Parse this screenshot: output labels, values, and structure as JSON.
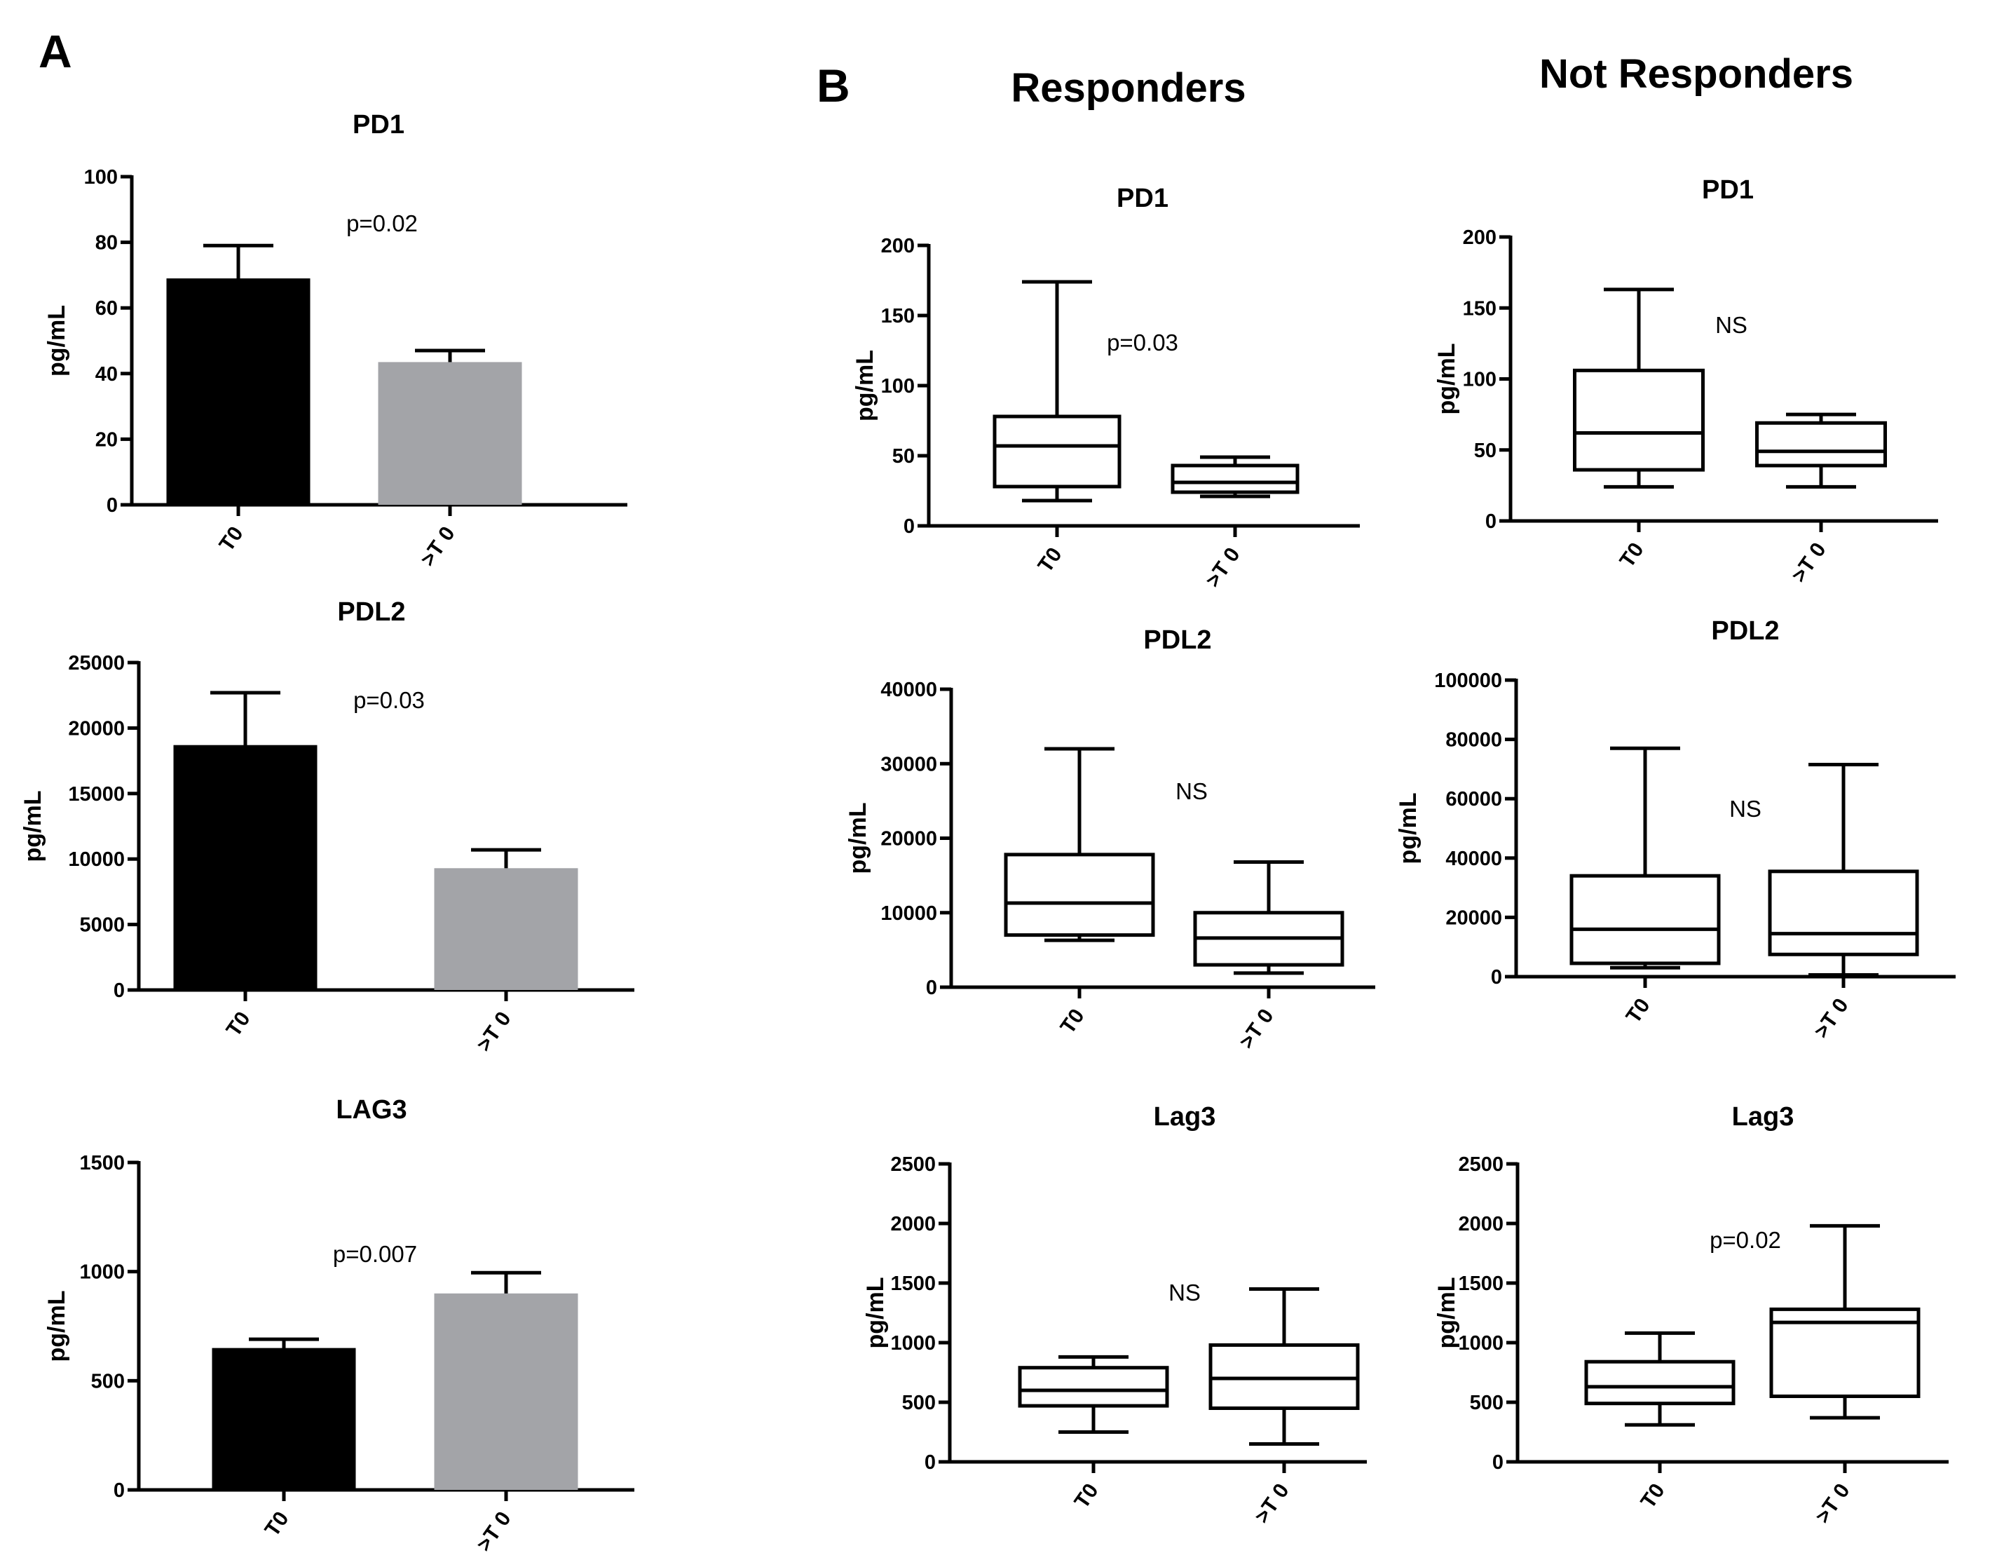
{
  "panels": {
    "a_label": "A",
    "b_label": "B",
    "responders_label": "Responders",
    "not_responders_label": "Not Responders"
  },
  "colors": {
    "bar_t0": "#000000",
    "bar_after": "#a3a4a8",
    "axis": "#000000"
  },
  "chart_data": [
    {
      "id": "a-pd1",
      "type": "bar",
      "title": "PD1",
      "ylabel": "pg/mL",
      "categories": [
        "T0",
        ">T 0"
      ],
      "values": [
        69,
        43.5
      ],
      "errors": [
        79,
        47
      ],
      "ylim": [
        0,
        100
      ],
      "yticks": [
        0,
        20,
        40,
        60,
        80,
        100
      ],
      "annotation": "p=0.02"
    },
    {
      "id": "a-pdl2",
      "type": "bar",
      "title": "PDL2",
      "ylabel": "pg/mL",
      "categories": [
        "T0",
        ">T 0"
      ],
      "values": [
        18700,
        9300
      ],
      "errors": [
        22700,
        10700
      ],
      "ylim": [
        0,
        25000
      ],
      "yticks": [
        0,
        5000,
        10000,
        15000,
        20000,
        25000
      ],
      "annotation": "p=0.03"
    },
    {
      "id": "a-lag3",
      "type": "bar",
      "title": "LAG3",
      "ylabel": "pg/mL",
      "categories": [
        "T0",
        ">T 0"
      ],
      "values": [
        650,
        900
      ],
      "errors": [
        690,
        995
      ],
      "ylim": [
        0,
        1500
      ],
      "yticks": [
        0,
        500,
        1000,
        1500
      ],
      "annotation": "p=0.007"
    },
    {
      "id": "r-pd1",
      "type": "box",
      "group": "Responders",
      "title": "PD1",
      "ylabel": "pg/mL",
      "categories": [
        "T0",
        ">T 0"
      ],
      "boxes": [
        {
          "min": 18,
          "q1": 28,
          "median": 57,
          "q3": 78,
          "max": 174
        },
        {
          "min": 21,
          "q1": 24,
          "median": 31,
          "q3": 43,
          "max": 49
        }
      ],
      "ylim": [
        0,
        200
      ],
      "yticks": [
        0,
        50,
        100,
        150,
        200
      ],
      "annotation": "p=0.03"
    },
    {
      "id": "n-pd1",
      "type": "box",
      "group": "Not Responders",
      "title": "PD1",
      "ylabel": "pg/mL",
      "categories": [
        "T0",
        ">T 0"
      ],
      "boxes": [
        {
          "min": 24,
          "q1": 36,
          "median": 62,
          "q3": 106,
          "max": 163
        },
        {
          "min": 24,
          "q1": 39,
          "median": 49,
          "q3": 69,
          "max": 75
        }
      ],
      "ylim": [
        0,
        200
      ],
      "yticks": [
        0,
        50,
        100,
        150,
        200
      ],
      "annotation": "NS"
    },
    {
      "id": "r-pdl2",
      "type": "box",
      "group": "Responders",
      "title": "PDL2",
      "ylabel": "pg/mL",
      "categories": [
        "T0",
        ">T 0"
      ],
      "boxes": [
        {
          "min": 6300,
          "q1": 7000,
          "median": 11300,
          "q3": 17800,
          "max": 32000
        },
        {
          "min": 1900,
          "q1": 3000,
          "median": 6600,
          "q3": 10000,
          "max": 16800
        }
      ],
      "ylim": [
        0,
        40000
      ],
      "yticks": [
        0,
        10000,
        20000,
        30000,
        40000
      ],
      "annotation": "NS"
    },
    {
      "id": "n-pdl2",
      "type": "box",
      "group": "Not Responders",
      "title": "PDL2",
      "ylabel": "pg/mL",
      "categories": [
        "T0",
        ">T 0"
      ],
      "boxes": [
        {
          "min": 3000,
          "q1": 4500,
          "median": 16000,
          "q3": 34000,
          "max": 77000
        },
        {
          "min": 600,
          "q1": 7500,
          "median": 14500,
          "q3": 35500,
          "max": 71500
        }
      ],
      "ylim": [
        0,
        100000
      ],
      "yticks": [
        0,
        20000,
        40000,
        60000,
        80000,
        100000
      ],
      "annotation": "NS"
    },
    {
      "id": "r-lag3",
      "type": "box",
      "group": "Responders",
      "title": "Lag3",
      "ylabel": "pg/mL",
      "categories": [
        "T0",
        ">T 0"
      ],
      "boxes": [
        {
          "min": 250,
          "q1": 470,
          "median": 600,
          "q3": 790,
          "max": 880
        },
        {
          "min": 150,
          "q1": 450,
          "median": 700,
          "q3": 980,
          "max": 1450
        }
      ],
      "ylim": [
        0,
        2500
      ],
      "yticks": [
        0,
        500,
        1000,
        1500,
        2000,
        2500
      ],
      "annotation": "NS"
    },
    {
      "id": "n-lag3",
      "type": "box",
      "group": "Not Responders",
      "title": "Lag3",
      "ylabel": "pg/mL",
      "categories": [
        "T0",
        ">T 0"
      ],
      "boxes": [
        {
          "min": 310,
          "q1": 490,
          "median": 630,
          "q3": 840,
          "max": 1080
        },
        {
          "min": 370,
          "q1": 550,
          "median": 1170,
          "q3": 1280,
          "max": 1980
        }
      ],
      "ylim": [
        0,
        2500
      ],
      "yticks": [
        0,
        500,
        1000,
        1500,
        2000,
        2500
      ],
      "annotation": "p=0.02"
    }
  ]
}
